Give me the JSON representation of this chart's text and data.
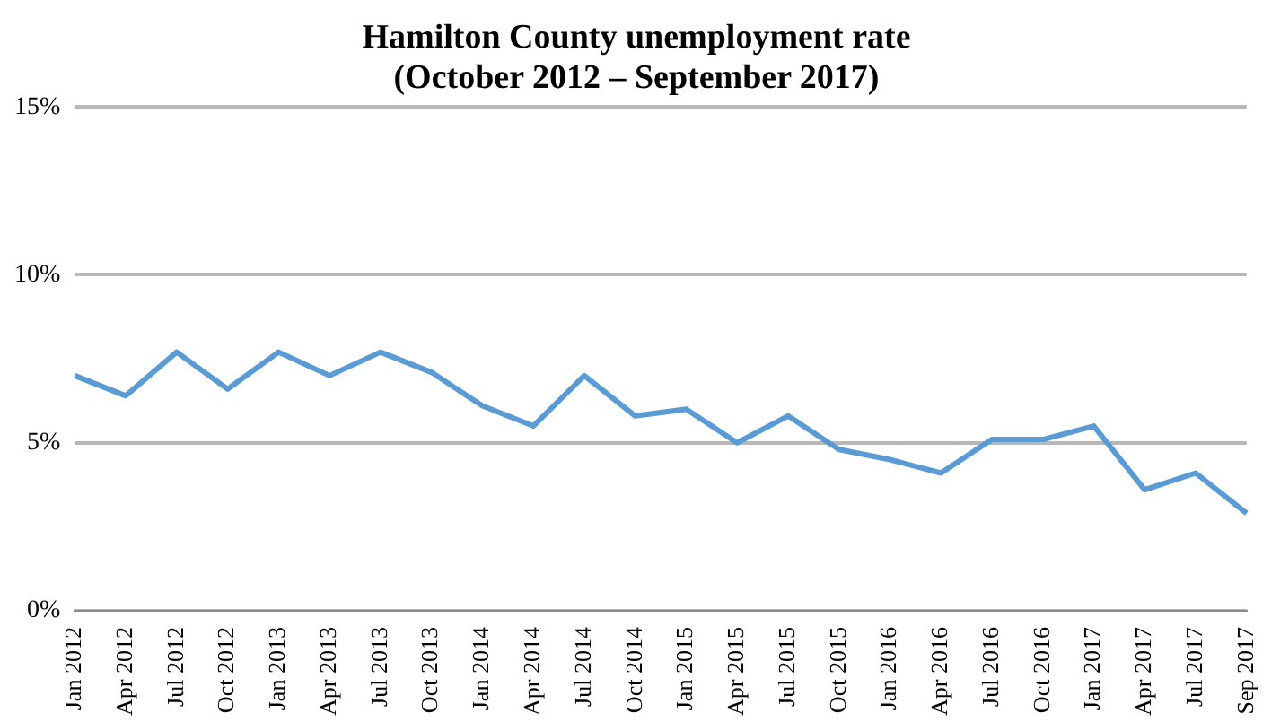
{
  "chart_data": {
    "type": "line",
    "title": [
      "Hamilton County unemployment rate",
      "(October 2012 – September 2017)"
    ],
    "categories": [
      "Jan 2012",
      "Apr 2012",
      "Jul 2012",
      "Oct 2012",
      "Jan 2013",
      "Apr 2013",
      "Jul 2013",
      "Oct 2013",
      "Jan 2014",
      "Apr 2014",
      "Jul 2014",
      "Oct 2014",
      "Jan 2015",
      "Apr 2015",
      "Jul 2015",
      "Oct 2015",
      "Jan 2016",
      "Apr 2016",
      "Jul 2016",
      "Oct 2016",
      "Jan 2017",
      "Apr 2017",
      "Jul 2017",
      "Sep 2017"
    ],
    "series": [
      {
        "color": "#5b9bd5",
        "values": [
          7.0,
          6.4,
          7.7,
          6.6,
          7.7,
          7.0,
          7.7,
          7.1,
          6.1,
          5.5,
          7.0,
          5.8,
          6.0,
          5.0,
          5.8,
          4.8,
          4.5,
          4.1,
          5.1,
          5.1,
          5.5,
          3.6,
          4.1,
          2.9
        ]
      }
    ],
    "ylim": [
      0,
      15
    ],
    "yticks": [
      {
        "value": 0,
        "label": "0%"
      },
      {
        "value": 5,
        "label": "5%"
      },
      {
        "value": 10,
        "label": "10%"
      },
      {
        "value": 15,
        "label": "15%"
      }
    ],
    "grid": "y",
    "legend": false,
    "marker": "none",
    "line_style": "solid"
  }
}
